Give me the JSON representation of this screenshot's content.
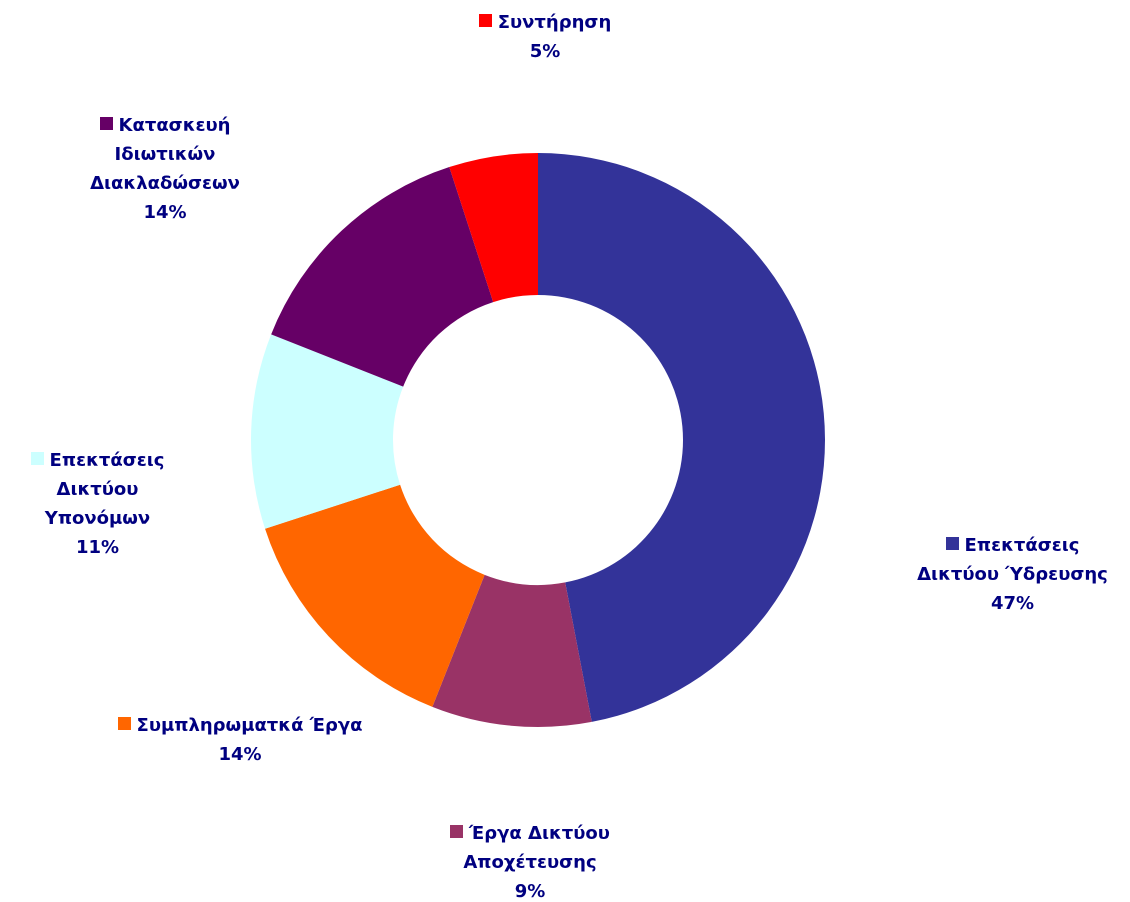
{
  "chart_data": {
    "type": "donut",
    "categories": [
      "Επεκτάσεις Δικτύου Ύδρευσης",
      "Έργα Δικτύου Αποχέτευσης",
      "Συμπληρωματκά Έργα",
      "Επεκτάσεις Δικτύου Υπονόμων",
      "Κατασκευή Ιδιωτικών Διακλαδώσεων",
      "Συντήρηση"
    ],
    "values": [
      47,
      9,
      14,
      11,
      14,
      5
    ],
    "value_labels": [
      "47%",
      "9%",
      "14%",
      "11%",
      "14%",
      "5%"
    ],
    "colors": [
      "#333399",
      "#993366",
      "#ff6600",
      "#ccffff",
      "#660066",
      "#ff0000"
    ]
  }
}
